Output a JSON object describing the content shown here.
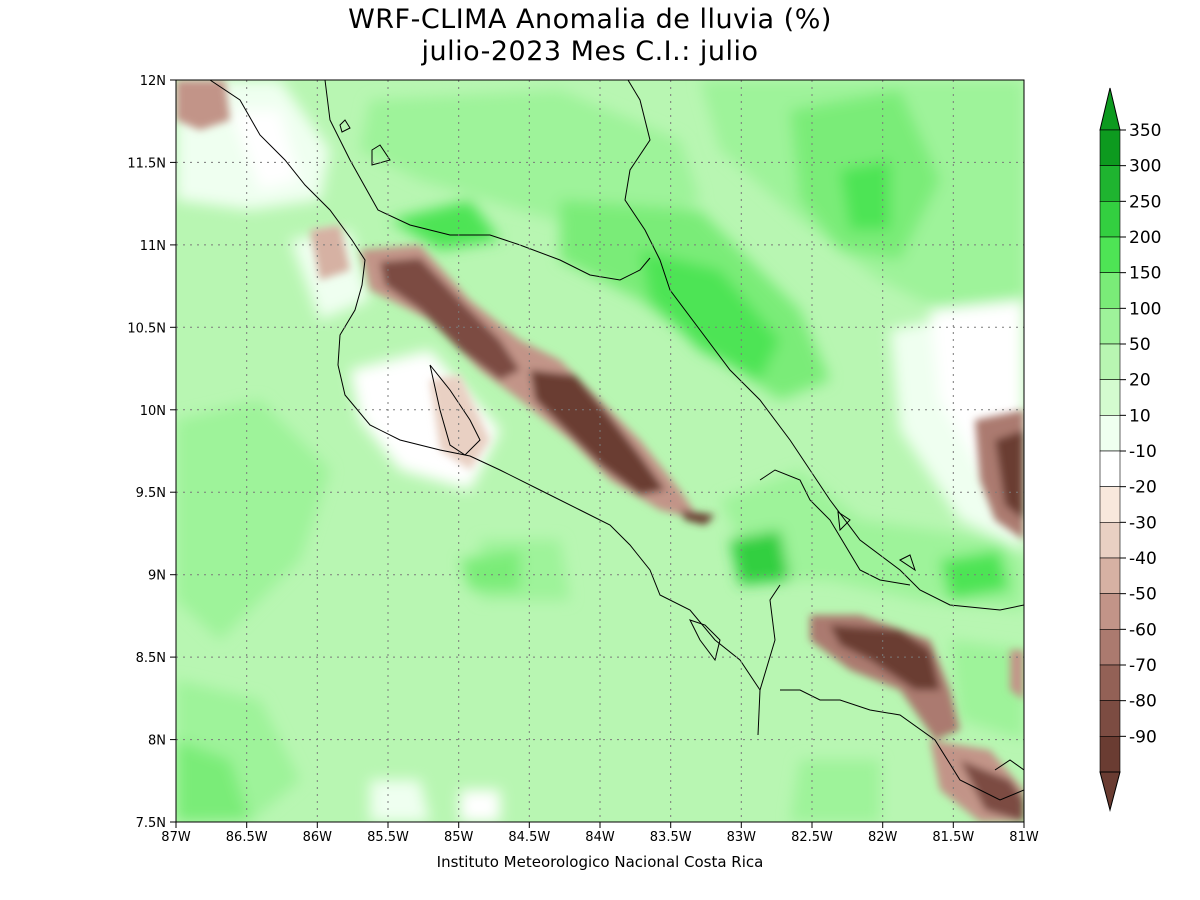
{
  "title_line1": "WRF-CLIMA Anomalia de lluvia (%)",
  "title_line2": "julio-2023 Mes C.I.: julio",
  "credit": "Instituto Meteorologico Nacional Costa Rica",
  "map": {
    "region": "Costa Rica",
    "lon_range": [
      -87,
      -81
    ],
    "lat_range": [
      7.5,
      12
    ],
    "x_tick_labels": [
      "87W",
      "86.5W",
      "86W",
      "85.5W",
      "85W",
      "84.5W",
      "84W",
      "83.5W",
      "83W",
      "82.5W",
      "82W",
      "81.5W",
      "81W"
    ],
    "y_tick_labels": [
      "7.5N",
      "8N",
      "8.5N",
      "9N",
      "9.5N",
      "10N",
      "10.5N",
      "11N",
      "11.5N",
      "12N"
    ],
    "grid": "dotted"
  },
  "colorbar": {
    "labels": [
      "350",
      "300",
      "250",
      "200",
      "150",
      "100",
      "50",
      "20",
      "10",
      "-10",
      "-20",
      "-30",
      "-40",
      "-50",
      "-60",
      "-70",
      "-80",
      "-90"
    ],
    "colors": [
      "#0d9a1f",
      "#1fb430",
      "#33cf40",
      "#4ee455",
      "#7aec78",
      "#9ef39a",
      "#b8f6b2",
      "#d4fbcf",
      "#effff0",
      "#ffffff",
      "#f8e8dc",
      "#e9d0c3",
      "#d6b1a3",
      "#c29488",
      "#ab7a6f",
      "#936156",
      "#7c4c42",
      "#6a3c32"
    ]
  }
}
